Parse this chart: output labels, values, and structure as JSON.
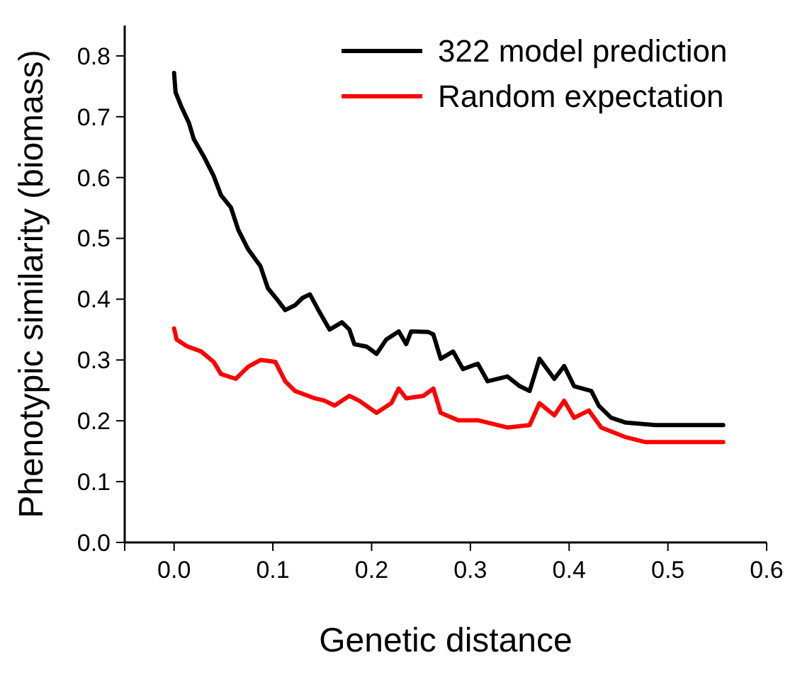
{
  "chart_data": {
    "type": "line",
    "xlabel": "Genetic distance",
    "ylabel": "Phenotypic similarity (biomass)",
    "xlim": [
      -0.05,
      0.6
    ],
    "ylim": [
      0,
      0.85
    ],
    "xticks": [
      {
        "value": -0.05,
        "label": null
      },
      {
        "value": 0,
        "label": "0.0"
      },
      0.1,
      0.2,
      0.3,
      0.4,
      0.5,
      0.6
    ],
    "yticks": [
      {
        "value": 0,
        "label": "0.0"
      },
      0.1,
      0.2,
      0.3,
      0.4,
      0.5,
      0.6,
      0.7,
      0.8
    ],
    "grid": false,
    "legend": "top right",
    "marker": "none",
    "line_style": "solid",
    "series": [
      {
        "name": "322 model prediction",
        "color": "#000000",
        "x": [
          0,
          0.0015,
          0.0075,
          0.015,
          0.02,
          0.03,
          0.04,
          0.0475,
          0.0575,
          0.065,
          0.075,
          0.0875,
          0.095,
          0.105,
          0.1125,
          0.1225,
          0.13,
          0.1375,
          0.1475,
          0.1575,
          0.17,
          0.1775,
          0.1825,
          0.195,
          0.205,
          0.215,
          0.2275,
          0.235,
          0.24,
          0.2575,
          0.2625,
          0.27,
          0.2825,
          0.2925,
          0.3075,
          0.3175,
          0.3375,
          0.35,
          0.36,
          0.37,
          0.385,
          0.395,
          0.405,
          0.4225,
          0.43,
          0.4425,
          0.4575,
          0.4875,
          0.556
        ],
        "values": [
          0.772,
          0.74,
          0.716,
          0.69,
          0.663,
          0.635,
          0.603,
          0.571,
          0.551,
          0.514,
          0.482,
          0.454,
          0.418,
          0.398,
          0.382,
          0.39,
          0.402,
          0.408,
          0.378,
          0.35,
          0.362,
          0.35,
          0.326,
          0.322,
          0.31,
          0.334,
          0.347,
          0.326,
          0.347,
          0.346,
          0.342,
          0.302,
          0.314,
          0.285,
          0.294,
          0.265,
          0.273,
          0.257,
          0.249,
          0.302,
          0.269,
          0.29,
          0.257,
          0.249,
          0.225,
          0.205,
          0.197,
          0.193,
          0.193
        ]
      },
      {
        "name": "Random expectation",
        "color": "#ff0000",
        "x": [
          0,
          0.0025,
          0.0125,
          0.0275,
          0.04,
          0.0475,
          0.0625,
          0.075,
          0.0875,
          0.1025,
          0.1125,
          0.1225,
          0.1425,
          0.1525,
          0.1625,
          0.1775,
          0.1875,
          0.205,
          0.22,
          0.2275,
          0.235,
          0.2525,
          0.2625,
          0.27,
          0.2875,
          0.3075,
          0.3375,
          0.36,
          0.37,
          0.385,
          0.395,
          0.405,
          0.42,
          0.4325,
          0.4575,
          0.4775,
          0.556
        ],
        "values": [
          0.352,
          0.334,
          0.323,
          0.314,
          0.297,
          0.277,
          0.269,
          0.289,
          0.3,
          0.297,
          0.265,
          0.249,
          0.237,
          0.233,
          0.225,
          0.241,
          0.233,
          0.213,
          0.229,
          0.253,
          0.237,
          0.241,
          0.253,
          0.213,
          0.201,
          0.201,
          0.189,
          0.193,
          0.229,
          0.209,
          0.233,
          0.205,
          0.217,
          0.189,
          0.173,
          0.165,
          0.165
        ]
      }
    ]
  }
}
